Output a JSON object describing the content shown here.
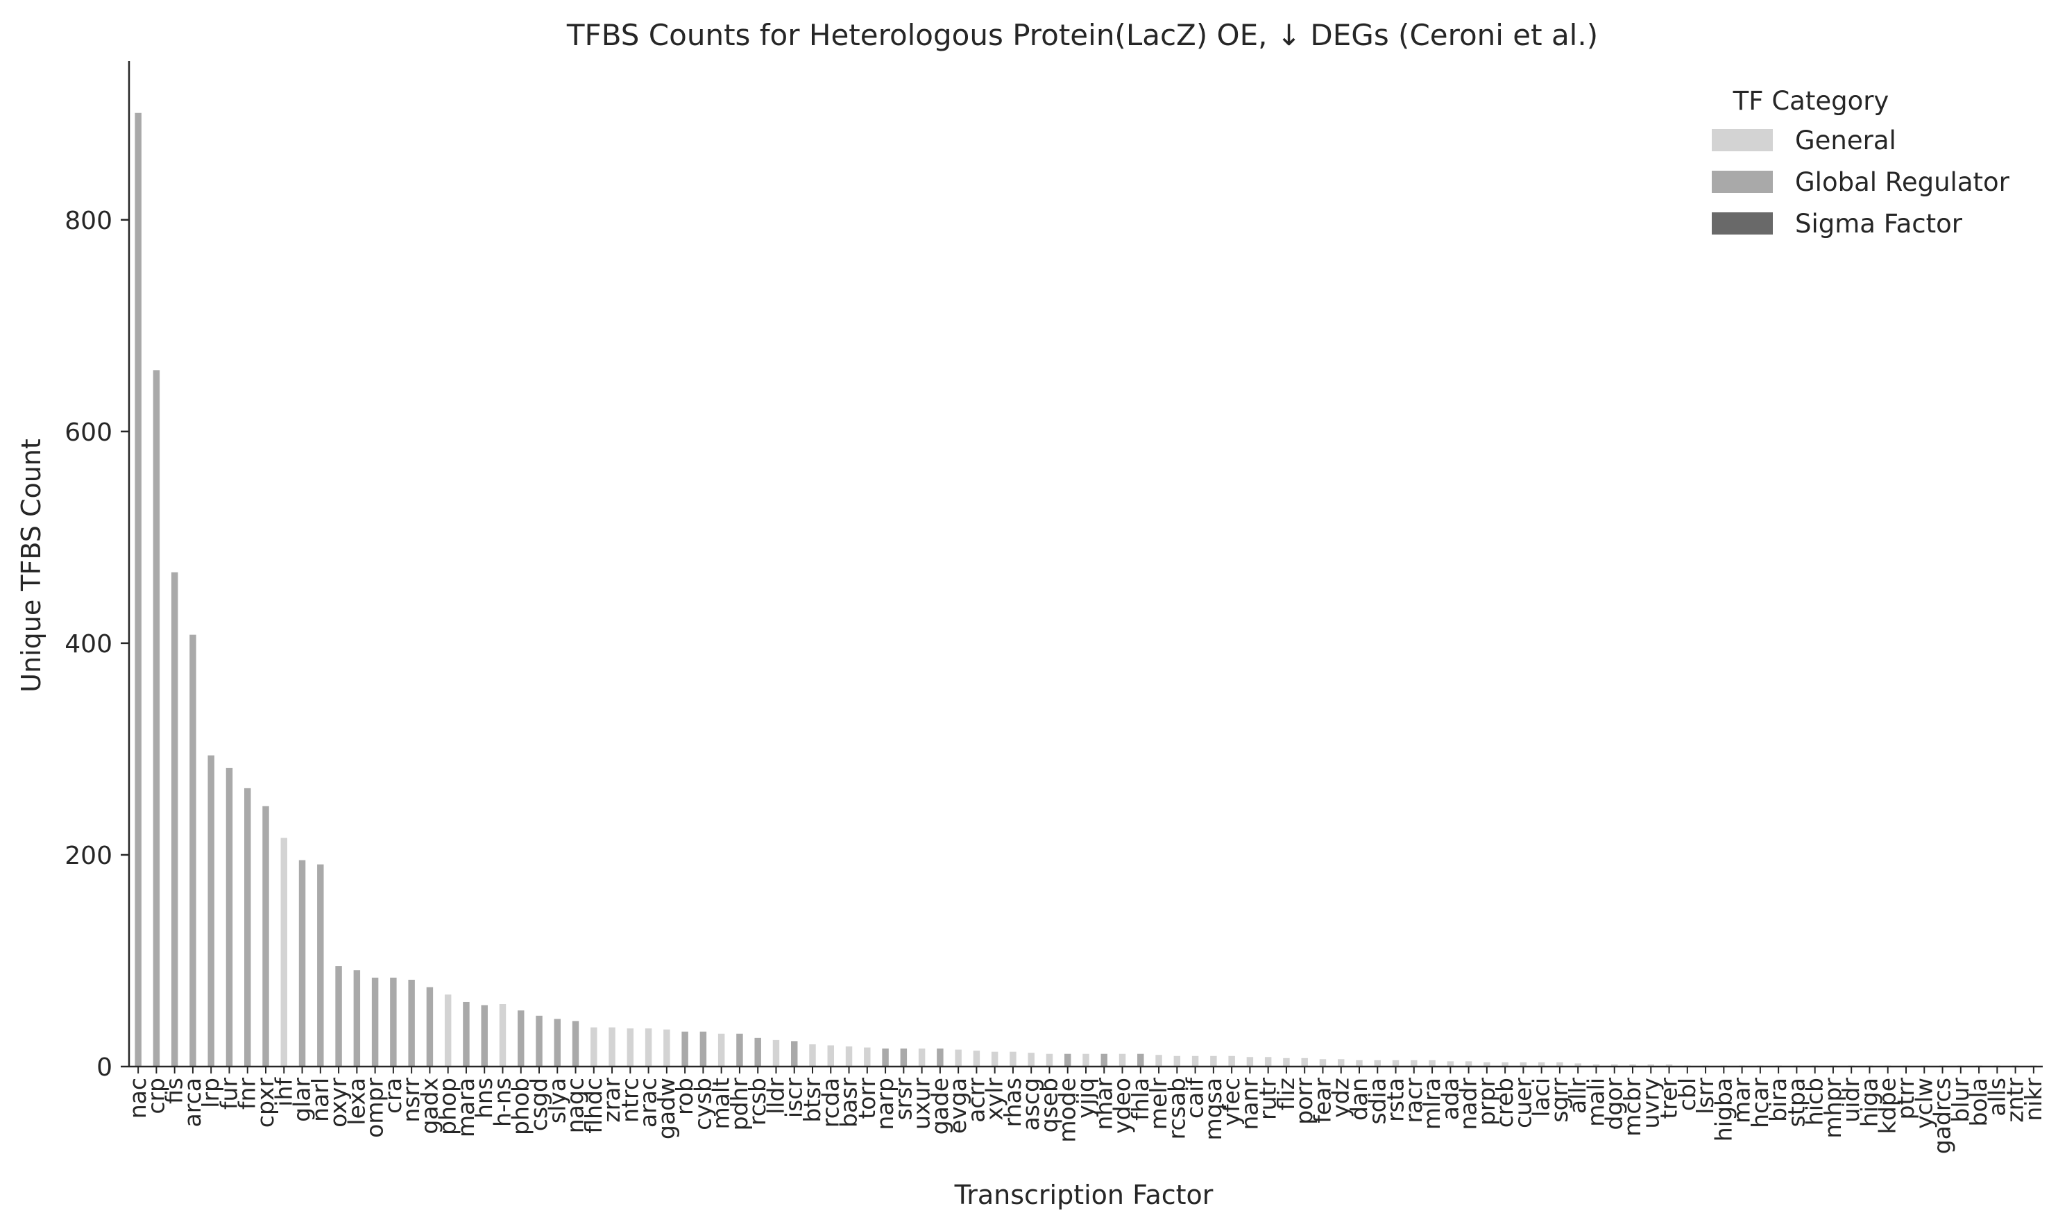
{
  "chart_data": {
    "type": "bar",
    "title": "TFBS Counts for Heterologous Protein(LacZ) OE, ↓ DEGs (Ceroni et al.)",
    "xlabel": "Transcription Factor",
    "ylabel": "Unique TFBS Count",
    "ylim": [
      0,
      950
    ],
    "yticks": [
      0,
      200,
      400,
      600,
      800
    ],
    "grid": false,
    "legend": {
      "title": "TF Category",
      "placement": "top-right",
      "entries": [
        {
          "name": "General",
          "color": "#d3d3d3"
        },
        {
          "name": "Global Regulator",
          "color": "#a9a9a9"
        },
        {
          "name": "Sigma Factor",
          "color": "#696969"
        }
      ]
    },
    "colors": {
      "General": "#d3d3d3",
      "Global Regulator": "#a9a9a9",
      "Sigma Factor": "#696969"
    },
    "categories": [
      "nac",
      "crp",
      "fis",
      "arca",
      "lrp",
      "fur",
      "fnr",
      "cpxr",
      "ihf",
      "glar",
      "narl",
      "oxyr",
      "lexa",
      "ompr",
      "cra",
      "nsrr",
      "gadx",
      "phop",
      "mara",
      "hns",
      "h-ns",
      "phob",
      "csgd",
      "slya",
      "nagc",
      "flhdc",
      "zrar",
      "ntrc",
      "arac",
      "gadw",
      "rob",
      "cysb",
      "malt",
      "pdhr",
      "rcsb",
      "lldr",
      "iscr",
      "btsr",
      "rcda",
      "basr",
      "torr",
      "narp",
      "srsr",
      "uxur",
      "gade",
      "evga",
      "acrr",
      "xylr",
      "rhas",
      "ascg",
      "qseb",
      "mode",
      "yjjq",
      "nhar",
      "ydeo",
      "fhla",
      "melr",
      "rcsab",
      "caif",
      "mqsa",
      "yfec",
      "nanr",
      "rutr",
      "fliz",
      "porr",
      "fear",
      "ydz",
      "dan",
      "sdia",
      "rsta",
      "racr",
      "mlra",
      "ada",
      "nadr",
      "prpr",
      "creb",
      "cuer",
      "laci",
      "sgrr",
      "allr",
      "mali",
      "dgor",
      "mcbr",
      "uvry",
      "trer",
      "cbl",
      "lsrr",
      "higba",
      "mar",
      "hcar",
      "bira",
      "stpa",
      "hicb",
      "mhpr",
      "uidr",
      "higa",
      "kdpe",
      "ptrr",
      "yclw",
      "gadrcs",
      "blur",
      "bola",
      "alls",
      "zntr",
      "nikr"
    ],
    "values": [
      901,
      658,
      467,
      408,
      294,
      282,
      263,
      246,
      216,
      195,
      191,
      95,
      91,
      84,
      84,
      82,
      75,
      68,
      61,
      58,
      59,
      53,
      48,
      45,
      43,
      37,
      37,
      36,
      36,
      35,
      33,
      33,
      31,
      31,
      27,
      25,
      24,
      21,
      20,
      19,
      18,
      17,
      17,
      17,
      17,
      16,
      15,
      14,
      14,
      13,
      12,
      12,
      12,
      12,
      12,
      12,
      11,
      10,
      10,
      10,
      10,
      9,
      9,
      8,
      8,
      7,
      7,
      6,
      6,
      6,
      6,
      6,
      5,
      5,
      4,
      4,
      4,
      4,
      4,
      3,
      2,
      2,
      2,
      2,
      2,
      1,
      1,
      1,
      1,
      1,
      1,
      1,
      1,
      1,
      1,
      1,
      1,
      1,
      1,
      1,
      1,
      1,
      1,
      1,
      1
    ],
    "category_of": [
      "Global Regulator",
      "Global Regulator",
      "Global Regulator",
      "Global Regulator",
      "Global Regulator",
      "Global Regulator",
      "Global Regulator",
      "Global Regulator",
      "General",
      "Global Regulator",
      "Global Regulator",
      "Global Regulator",
      "Global Regulator",
      "Global Regulator",
      "Global Regulator",
      "Global Regulator",
      "Global Regulator",
      "General",
      "Global Regulator",
      "Global Regulator",
      "General",
      "Global Regulator",
      "Global Regulator",
      "Global Regulator",
      "Global Regulator",
      "General",
      "General",
      "General",
      "General",
      "General",
      "Global Regulator",
      "Global Regulator",
      "General",
      "Global Regulator",
      "Global Regulator",
      "General",
      "Global Regulator",
      "General",
      "General",
      "General",
      "General",
      "Global Regulator",
      "Global Regulator",
      "General",
      "Global Regulator",
      "General",
      "General",
      "General",
      "General",
      "General",
      "General",
      "Global Regulator",
      "General",
      "Global Regulator",
      "General",
      "Global Regulator",
      "General",
      "General",
      "General",
      "General",
      "General",
      "General",
      "General",
      "General",
      "General",
      "General",
      "General",
      "General",
      "General",
      "General",
      "General",
      "General",
      "General",
      "General",
      "General",
      "General",
      "General",
      "General",
      "General",
      "General",
      "General",
      "General",
      "General",
      "General",
      "General",
      "General",
      "General",
      "General",
      "General",
      "General",
      "General",
      "General",
      "General",
      "General",
      "General",
      "General",
      "General",
      "General",
      "General",
      "General",
      "General",
      "General",
      "General",
      "General",
      "General"
    ]
  }
}
